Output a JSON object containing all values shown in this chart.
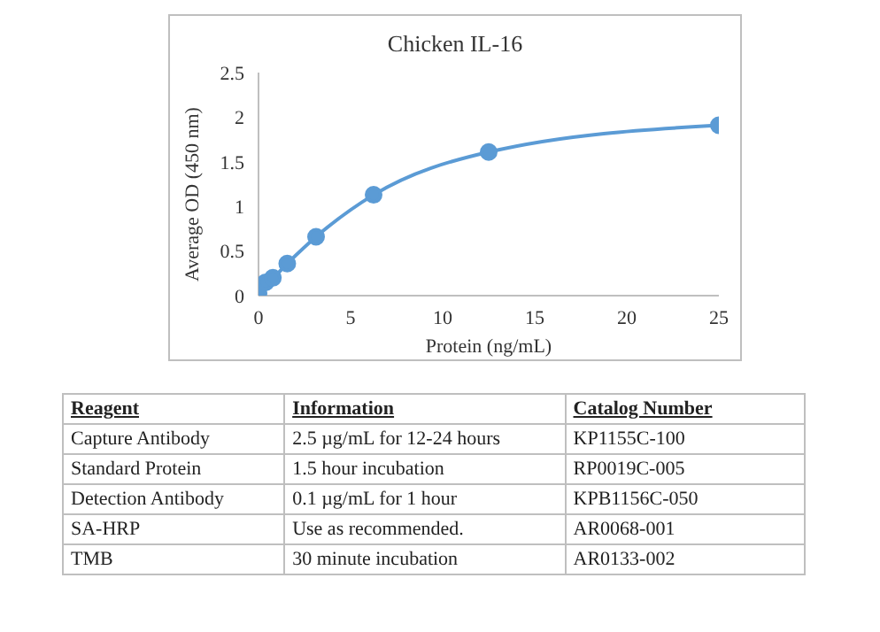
{
  "chart_data": {
    "type": "line",
    "title": "Chicken IL-16",
    "xlabel": "Protein (ng/mL)",
    "ylabel": "Average OD (450 nm)",
    "x": [
      0,
      0.39,
      0.78,
      1.56,
      3.125,
      6.25,
      12.5,
      25
    ],
    "series": [
      {
        "color": "#5b9bd5",
        "values": [
          0.03,
          0.15,
          0.2,
          0.36,
          0.66,
          1.13,
          1.61,
          1.91
        ]
      }
    ],
    "xlim": [
      0,
      25
    ],
    "xticks": [
      0,
      5,
      10,
      15,
      20,
      25
    ],
    "ylim": [
      0,
      2.5
    ],
    "yticks": [
      0,
      0.5,
      1,
      1.5,
      2,
      2.5
    ],
    "grid": false,
    "legend": false,
    "marker": "circle",
    "line_style": "solid",
    "annotations": [
      "Reagent",
      "Information",
      "Catalog Number",
      "Capture Antibody",
      "2.5 µg/mL for 12-24 hours",
      "KP1155C-100",
      "Standard Protein",
      "1.5 hour incubation",
      "RP0019C-005",
      "Detection Antibody",
      "0.1 µg/mL for 1 hour",
      "KPB1156C-050",
      "SA-HRP",
      "Use as recommended.",
      "AR0068-001",
      "TMB",
      "30 minute incubation",
      "AR0133-002"
    ]
  }
}
